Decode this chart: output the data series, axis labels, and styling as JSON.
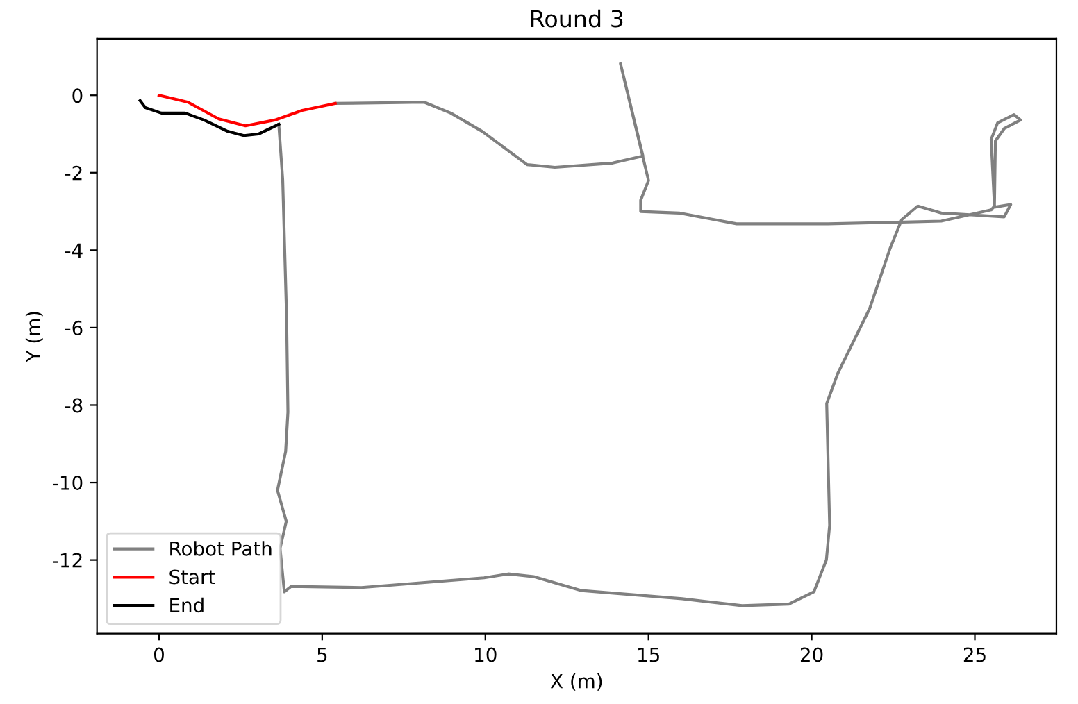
{
  "chart_data": {
    "type": "line",
    "title": "Round 3",
    "xlabel": "X (m)",
    "ylabel": "Y (m)",
    "series": [
      {
        "name": "Robot Path",
        "color": "#808080",
        "x": [
          5.4,
          8.13,
          8.94,
          9.9,
          11.28,
          12.13,
          13.9,
          14.83,
          14.14,
          15.0,
          14.76,
          14.76,
          15.94,
          17.7,
          20.5,
          23.97,
          25.5,
          25.6,
          25.5,
          25.7,
          26.2,
          26.4,
          25.9,
          25.63,
          25.6,
          26.1,
          25.9,
          23.97,
          23.25,
          22.76,
          22.4,
          21.78,
          20.8,
          20.46,
          20.55,
          20.45,
          20.07,
          19.3,
          17.87,
          16.03,
          12.95,
          11.48,
          10.7,
          9.96,
          6.2,
          4.05,
          3.84,
          3.71,
          3.9,
          3.63,
          3.88,
          3.95,
          3.91,
          3.79,
          3.67
        ],
        "values": [
          -0.21,
          -0.18,
          -0.46,
          -0.93,
          -1.79,
          -1.86,
          -1.75,
          -1.57,
          0.82,
          -2.2,
          -2.71,
          -3.0,
          -3.04,
          -3.32,
          -3.32,
          -3.25,
          -2.96,
          -2.86,
          -1.14,
          -0.71,
          -0.5,
          -0.64,
          -0.86,
          -1.18,
          -2.89,
          -2.82,
          -3.14,
          -3.04,
          -2.86,
          -3.21,
          -3.96,
          -5.5,
          -7.18,
          -7.96,
          -11.1,
          -12.0,
          -12.82,
          -13.14,
          -13.18,
          -13.0,
          -12.79,
          -12.43,
          -12.36,
          -12.46,
          -12.71,
          -12.68,
          -12.82,
          -11.7,
          -11.0,
          -10.2,
          -9.2,
          -8.18,
          -5.75,
          -2.18,
          -0.75
        ]
      },
      {
        "name": "Start",
        "color": "#ff0000",
        "x": [
          0,
          0.89,
          1.83,
          2.65,
          3.55,
          4.39,
          5.4
        ],
        "values": [
          0,
          -0.18,
          -0.61,
          -0.79,
          -0.64,
          -0.39,
          -0.21
        ]
      },
      {
        "name": "End",
        "color": "#000000",
        "x": [
          3.67,
          3.05,
          2.6,
          2.1,
          1.38,
          0.8,
          0.07,
          -0.42,
          -0.58
        ],
        "values": [
          -0.75,
          -1.0,
          -1.04,
          -0.93,
          -0.64,
          -0.46,
          -0.46,
          -0.32,
          -0.14
        ]
      }
    ],
    "xlim": [
      -1.9,
      27.5
    ],
    "ylim": [
      -13.9,
      1.46
    ],
    "xticks": [
      0,
      5,
      10,
      15,
      20,
      25
    ],
    "yticks": [
      -12,
      -10,
      -8,
      -6,
      -4,
      -2,
      0
    ],
    "legend": "lower left",
    "grid": false
  }
}
